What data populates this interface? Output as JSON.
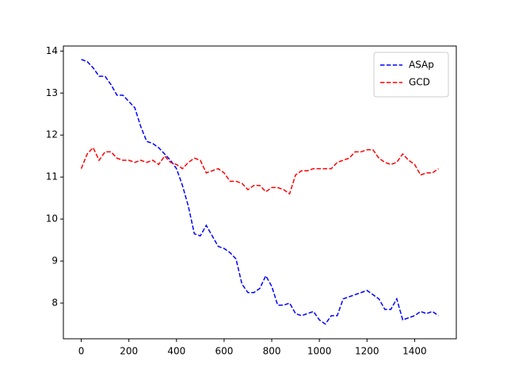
{
  "chart_data": {
    "type": "line",
    "x": [
      0,
      25,
      50,
      75,
      100,
      125,
      150,
      175,
      200,
      225,
      250,
      275,
      300,
      325,
      350,
      375,
      400,
      425,
      450,
      475,
      500,
      525,
      550,
      575,
      600,
      625,
      650,
      675,
      700,
      725,
      750,
      775,
      800,
      825,
      850,
      875,
      900,
      925,
      950,
      975,
      1000,
      1025,
      1050,
      1075,
      1100,
      1125,
      1150,
      1175,
      1200,
      1225,
      1250,
      1275,
      1300,
      1325,
      1350,
      1375,
      1400,
      1425,
      1450,
      1475,
      1500
    ],
    "series": [
      {
        "name": "ASAp",
        "color": "#0000ff",
        "values": [
          13.8,
          13.75,
          13.6,
          13.4,
          13.4,
          13.2,
          12.95,
          12.95,
          12.8,
          12.65,
          12.2,
          11.85,
          11.8,
          11.7,
          11.55,
          11.4,
          11.2,
          10.8,
          10.3,
          9.65,
          9.6,
          9.85,
          9.6,
          9.35,
          9.3,
          9.2,
          9.05,
          8.45,
          8.25,
          8.25,
          8.35,
          8.65,
          8.4,
          7.95,
          7.95,
          8.0,
          7.75,
          7.7,
          7.75,
          7.8,
          7.6,
          7.5,
          7.7,
          7.7,
          8.1,
          8.15,
          8.2,
          8.25,
          8.3,
          8.2,
          8.1,
          7.85,
          7.85,
          8.1,
          7.6,
          7.65,
          7.7,
          7.8,
          7.75,
          7.8,
          7.7
        ]
      },
      {
        "name": "GCD",
        "color": "#ff0000",
        "values": [
          11.2,
          11.55,
          11.7,
          11.4,
          11.6,
          11.6,
          11.45,
          11.4,
          11.4,
          11.35,
          11.4,
          11.35,
          11.4,
          11.3,
          11.5,
          11.35,
          11.3,
          11.2,
          11.35,
          11.45,
          11.4,
          11.1,
          11.15,
          11.2,
          11.1,
          10.9,
          10.9,
          10.85,
          10.7,
          10.8,
          10.8,
          10.65,
          10.75,
          10.75,
          10.7,
          10.6,
          11.05,
          11.15,
          11.15,
          11.2,
          11.2,
          11.2,
          11.2,
          11.35,
          11.4,
          11.45,
          11.6,
          11.6,
          11.65,
          11.65,
          11.45,
          11.35,
          11.3,
          11.35,
          11.55,
          11.4,
          11.3,
          11.05,
          11.1,
          11.1,
          11.2
        ]
      }
    ],
    "xlim": [
      -75,
      1575
    ],
    "xticks": [
      0,
      200,
      400,
      600,
      800,
      1000,
      1200,
      1400
    ],
    "ylim": [
      7.15,
      14.12
    ],
    "yticks": [
      8,
      9,
      10,
      11,
      12,
      13,
      14
    ],
    "legend": "upper right"
  }
}
